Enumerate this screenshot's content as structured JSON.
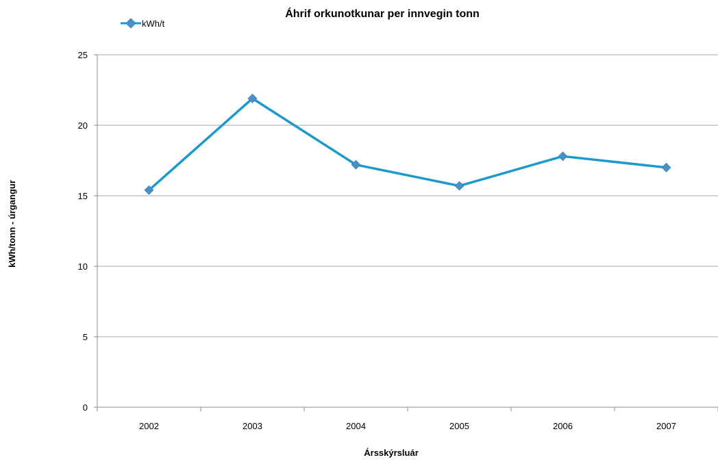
{
  "chart_data": {
    "type": "line",
    "title": "Áhrif orkunotkunar per innvegin tonn",
    "xlabel": "Ársskýrsluár",
    "ylabel": "kWh/tonn - úrgangur",
    "categories": [
      "2002",
      "2003",
      "2004",
      "2005",
      "2006",
      "2007"
    ],
    "series": [
      {
        "name": "kWh/t",
        "values": [
          15.4,
          21.9,
          17.2,
          15.7,
          17.8,
          17.0
        ]
      }
    ],
    "ylim": [
      0,
      25
    ],
    "yticks": [
      "0",
      "5",
      "10",
      "15",
      "20",
      "25"
    ],
    "grid": true,
    "legend": "top-left",
    "colors": {
      "series": "#1b9acb",
      "marker": "#4a90c8",
      "grid": "#a6a6a6",
      "axis": "#8c8c8c"
    }
  }
}
